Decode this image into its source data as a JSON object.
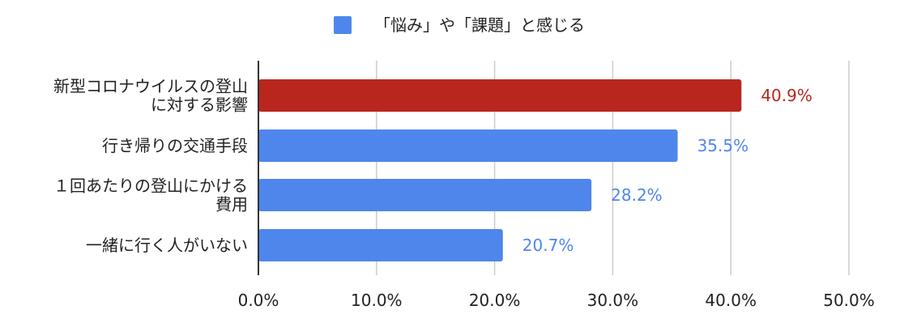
{
  "chart_data": {
    "type": "bar",
    "orientation": "horizontal",
    "legend": {
      "label": "「悩み」や「課題」と感じる",
      "color": "#4f86ec",
      "placement": "top-center"
    },
    "categories": [
      [
        "新型コロナウイルスの登山",
        "に対する影響"
      ],
      [
        "行き帰りの交通手段"
      ],
      [
        "１回あたりの登山にかける",
        "費用"
      ],
      [
        "一緒に行く人がいない"
      ]
    ],
    "series": [
      {
        "name": "「悩み」や「課題」と感じる",
        "values": [
          40.9,
          35.5,
          28.2,
          20.7
        ]
      }
    ],
    "data_labels": [
      "40.9%",
      "35.5%",
      "28.2%",
      "20.7%"
    ],
    "bar_colors": [
      "#b8261e",
      "#4f86ec",
      "#4f86ec",
      "#4f86ec"
    ],
    "label_colors": [
      "#b8261e",
      "#4f86ec",
      "#4f86ec",
      "#4f86ec"
    ],
    "xlim": [
      0,
      50
    ],
    "xticks": [
      0,
      10,
      20,
      30,
      40,
      50
    ],
    "xtick_labels": [
      "0.0%",
      "10.0%",
      "20.0%",
      "30.0%",
      "40.0%",
      "50.0%"
    ],
    "grid": true,
    "gridline_color": "#cccccc",
    "axis_color": "#333333"
  }
}
